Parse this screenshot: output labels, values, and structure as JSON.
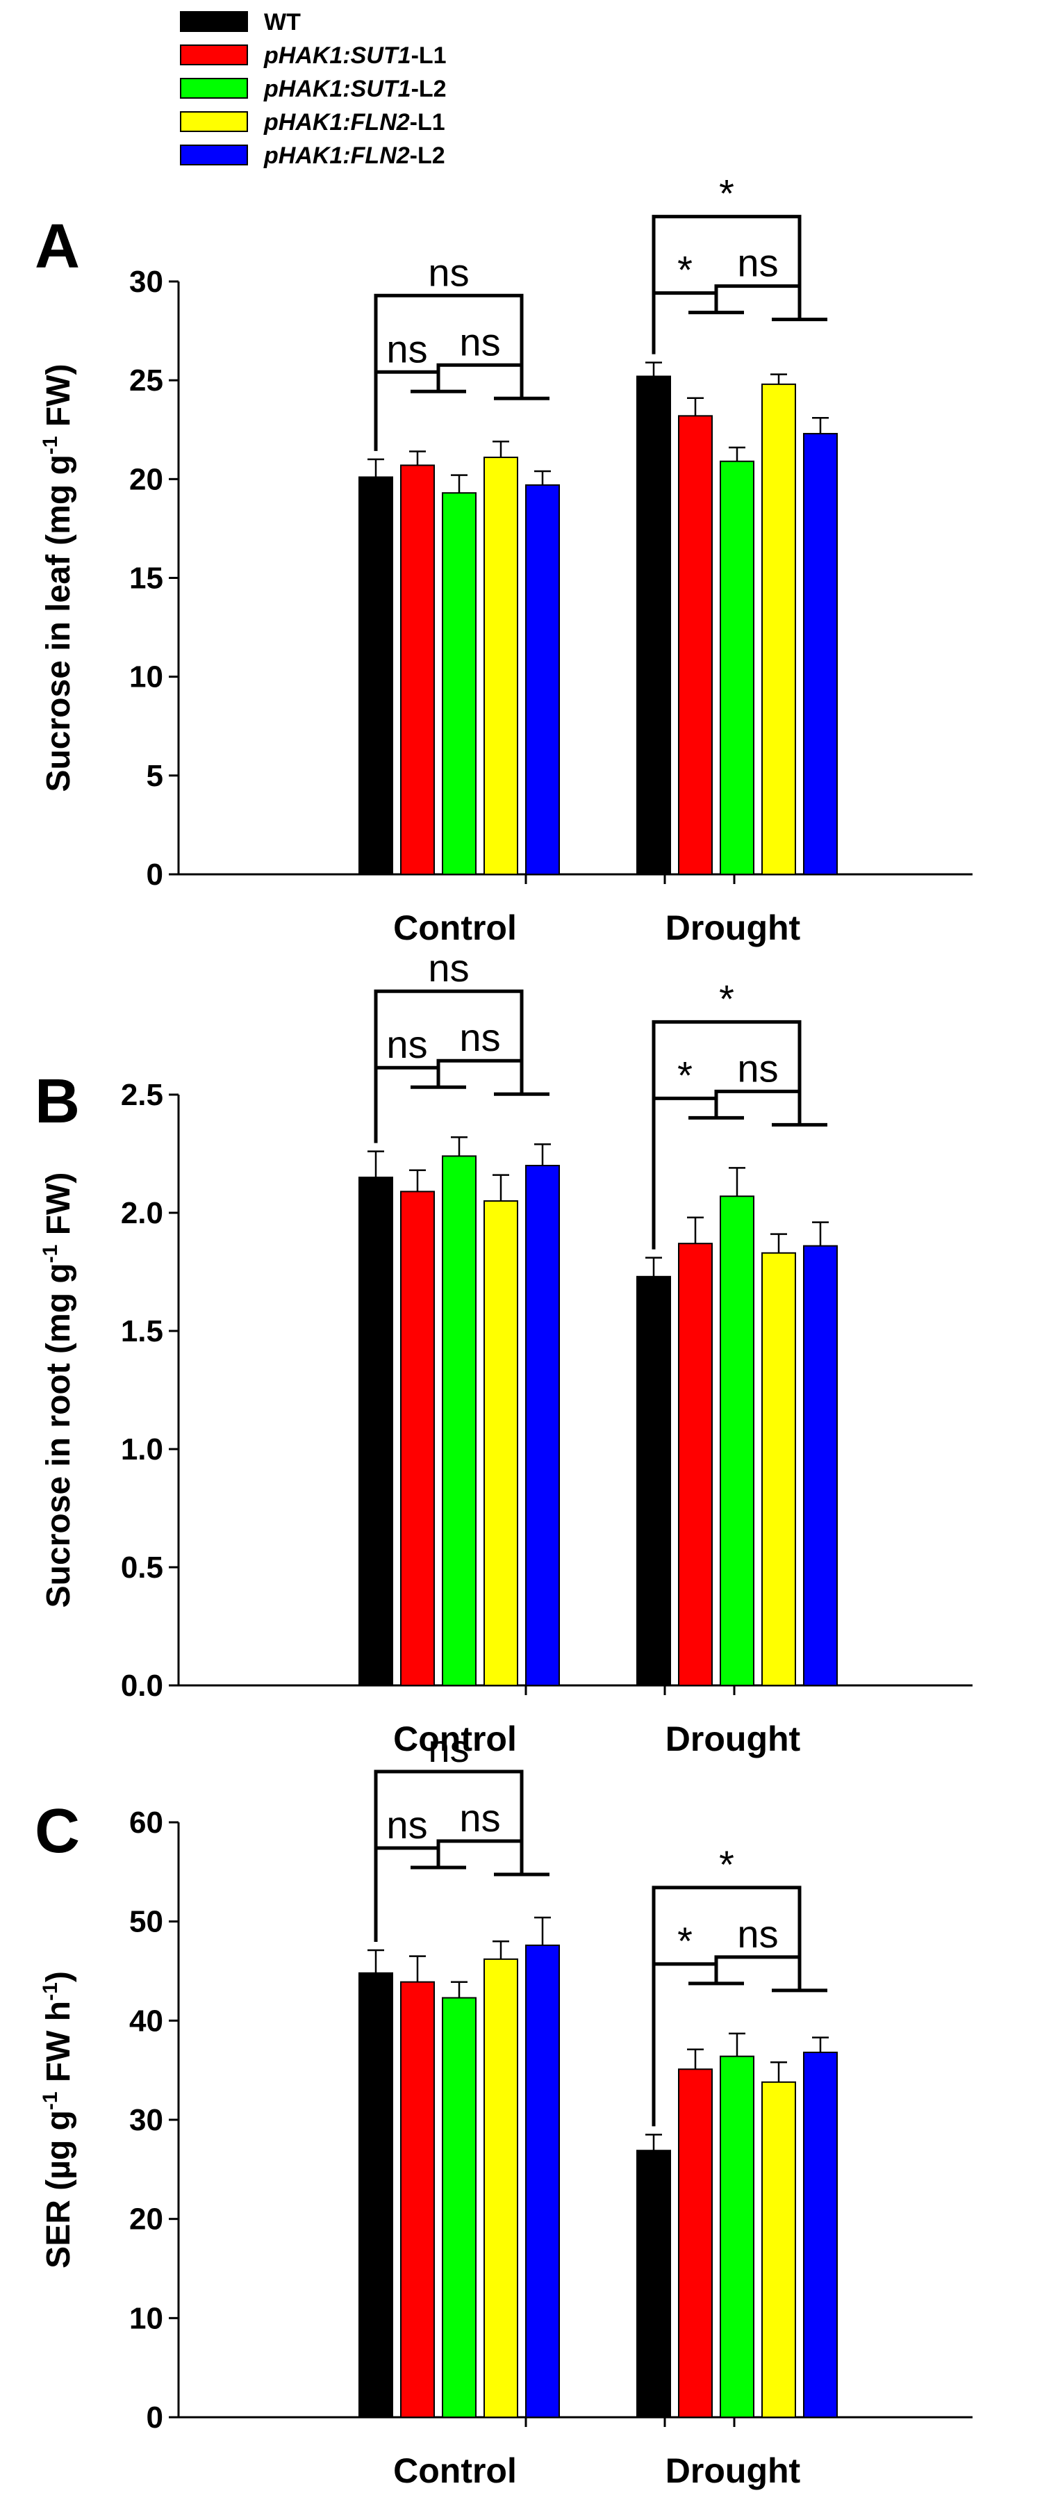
{
  "legend": {
    "entries": [
      {
        "label": "WT",
        "color": "#000000",
        "italic_part": "",
        "suffix": "WT"
      },
      {
        "label": "pHAK1:SUT1-L1",
        "color": "#ff0000",
        "italic_part": "pHAK1:SUT1",
        "suffix": "-L1"
      },
      {
        "label": "pHAK1:SUT1-L2",
        "color": "#00ff00",
        "italic_part": "pHAK1:SUT1",
        "suffix": "-L2"
      },
      {
        "label": "pHAK1:FLN2-L1",
        "color": "#ffff00",
        "italic_part": "pHAK1:FLN2",
        "suffix": "-L1"
      },
      {
        "label": "pHAK1:FLN2-L2",
        "color": "#0000ff",
        "italic_part": "pHAK1:FLN2",
        "suffix": "-L2"
      }
    ]
  },
  "chart_data": [
    {
      "panel": "A",
      "type": "bar",
      "ylabel": "Sucrose in leaf (mg g-1 FW)",
      "ylabel_parts": [
        "Sucrose in leaf (mg g",
        "-1",
        " FW)"
      ],
      "ylim": [
        0,
        30
      ],
      "yticks": [
        "0",
        "5",
        "10",
        "15",
        "20",
        "25",
        "30"
      ],
      "categories": [
        "Control",
        "Drought"
      ],
      "series": [
        {
          "name": "WT",
          "values": [
            20.1,
            25.2
          ],
          "errors": [
            0.9,
            0.7
          ]
        },
        {
          "name": "pHAK1:SUT1-L1",
          "values": [
            20.7,
            23.2
          ],
          "errors": [
            0.7,
            0.9
          ]
        },
        {
          "name": "pHAK1:SUT1-L2",
          "values": [
            19.3,
            20.9
          ],
          "errors": [
            0.9,
            0.7
          ]
        },
        {
          "name": "pHAK1:FLN2-L1",
          "values": [
            21.1,
            24.8
          ],
          "errors": [
            0.8,
            0.5
          ]
        },
        {
          "name": "pHAK1:FLN2-L2",
          "values": [
            19.7,
            22.3
          ],
          "errors": [
            0.7,
            0.8
          ]
        }
      ],
      "significance": [
        [
          "ns",
          "ns",
          "ns"
        ],
        [
          "*",
          "ns",
          "*"
        ]
      ]
    },
    {
      "panel": "B",
      "type": "bar",
      "ylabel": "Sucrose in root (mg g-1 FW)",
      "ylabel_parts": [
        "Sucrose in root (mg g",
        "-1",
        " FW)"
      ],
      "ylim": [
        0,
        2.5
      ],
      "yticks": [
        "0.0",
        "0.5",
        "1.0",
        "1.5",
        "2.0",
        "2.5"
      ],
      "categories": [
        "Control",
        "Drought"
      ],
      "series": [
        {
          "name": "WT",
          "values": [
            2.15,
            1.73
          ],
          "errors": [
            0.11,
            0.08
          ]
        },
        {
          "name": "pHAK1:SUT1-L1",
          "values": [
            2.09,
            1.87
          ],
          "errors": [
            0.09,
            0.11
          ]
        },
        {
          "name": "pHAK1:SUT1-L2",
          "values": [
            2.24,
            2.07
          ],
          "errors": [
            0.08,
            0.12
          ]
        },
        {
          "name": "pHAK1:FLN2-L1",
          "values": [
            2.05,
            1.83
          ],
          "errors": [
            0.11,
            0.08
          ]
        },
        {
          "name": "pHAK1:FLN2-L2",
          "values": [
            2.2,
            1.86
          ],
          "errors": [
            0.09,
            0.1
          ]
        }
      ],
      "significance": [
        [
          "ns",
          "ns",
          "ns"
        ],
        [
          "*",
          "ns",
          "*"
        ]
      ]
    },
    {
      "panel": "C",
      "type": "bar",
      "ylabel": "SER (µg g-1 FW h-1)",
      "ylabel_parts": [
        "SER (µg g",
        "-1",
        " FW h",
        "-1",
        ")"
      ],
      "ylim": [
        0,
        60
      ],
      "yticks": [
        "0",
        "10",
        "20",
        "30",
        "40",
        "50",
        "60"
      ],
      "categories": [
        "Control",
        "Drought"
      ],
      "series": [
        {
          "name": "WT",
          "values": [
            44.8,
            26.9
          ],
          "errors": [
            2.3,
            1.6
          ]
        },
        {
          "name": "pHAK1:SUT1-L1",
          "values": [
            43.9,
            35.1
          ],
          "errors": [
            2.6,
            2.0
          ]
        },
        {
          "name": "pHAK1:SUT1-L2",
          "values": [
            42.3,
            36.4
          ],
          "errors": [
            1.6,
            2.3
          ]
        },
        {
          "name": "pHAK1:FLN2-L1",
          "values": [
            46.2,
            33.8
          ],
          "errors": [
            1.8,
            2.0
          ]
        },
        {
          "name": "pHAK1:FLN2-L2",
          "values": [
            47.6,
            36.8
          ],
          "errors": [
            2.8,
            1.5
          ]
        }
      ],
      "significance": [
        [
          "ns",
          "ns",
          "ns"
        ],
        [
          "*",
          "ns",
          "*"
        ]
      ]
    }
  ]
}
